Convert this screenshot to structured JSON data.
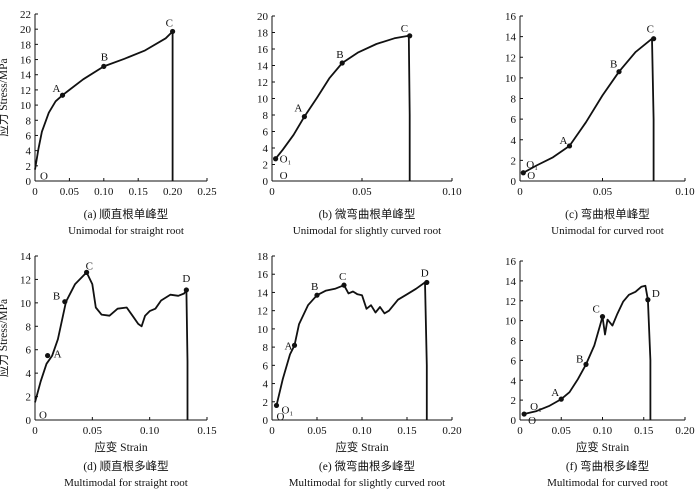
{
  "figure": {
    "y_axis_label": "应力 Stress/MPa",
    "x_axis_label": "应变 Strain"
  },
  "chart_data": [
    {
      "id": "a",
      "type": "line",
      "caption_cn": "(a) 顺直根单峰型",
      "caption_en": "Unimodal for straight root",
      "xlim": [
        0,
        0.25
      ],
      "ylim": [
        0,
        22
      ],
      "xticks": [
        "0",
        "0.05",
        "0.10",
        "0.15",
        "0.20",
        "0.25"
      ],
      "yticks": [
        "0",
        "2",
        "4",
        "6",
        "8",
        "10",
        "12",
        "14",
        "16",
        "18",
        "20",
        "22"
      ],
      "xtick_values": [
        0,
        0.05,
        0.1,
        0.15,
        0.2,
        0.25
      ],
      "ytick_values": [
        0,
        2,
        4,
        6,
        8,
        10,
        12,
        14,
        16,
        18,
        20,
        22
      ],
      "ylabel": "应力 Stress/MPa",
      "xlabel": "",
      "series": [
        {
          "x": [
            0,
            0.005,
            0.01,
            0.02,
            0.03,
            0.04,
            0.05,
            0.07,
            0.1,
            0.13,
            0.16,
            0.19,
            0.2,
            0.2,
            0.2
          ],
          "y": [
            1.5,
            4.2,
            6.5,
            9.0,
            10.5,
            11.3,
            12.0,
            13.4,
            15.1,
            16.1,
            17.2,
            18.8,
            19.7,
            8.0,
            0
          ]
        }
      ],
      "points": [
        {
          "label": "O",
          "x": 0,
          "y": 1.5,
          "dx": 5,
          "dy": 10
        },
        {
          "label": "A",
          "x": 0.04,
          "y": 11.3,
          "dx": -10,
          "dy": -3
        },
        {
          "label": "B",
          "x": 0.1,
          "y": 15.1,
          "dx": -3,
          "dy": -6
        },
        {
          "label": "C",
          "x": 0.2,
          "y": 19.7,
          "dx": -7,
          "dy": -5
        }
      ]
    },
    {
      "id": "b",
      "type": "line",
      "caption_cn": "(b) 微弯曲根单峰型",
      "caption_en": "Unimodal for slightly curved root",
      "xlim": [
        0,
        0.1
      ],
      "ylim": [
        0,
        20
      ],
      "xticks": [
        "0",
        "0.05",
        "0.10"
      ],
      "yticks": [
        "0",
        "2",
        "4",
        "6",
        "8",
        "10",
        "12",
        "14",
        "16",
        "18",
        "20"
      ],
      "xtick_values": [
        0,
        0.05,
        0.1
      ],
      "ytick_values": [
        0,
        2,
        4,
        6,
        8,
        10,
        12,
        14,
        16,
        18,
        20
      ],
      "xlabel": "",
      "ylabel": "",
      "series": [
        {
          "x": [
            0.002,
            0.006,
            0.012,
            0.018,
            0.025,
            0.032,
            0.039,
            0.048,
            0.058,
            0.068,
            0.076,
            0.0765,
            0.0765
          ],
          "y": [
            2.7,
            3.8,
            5.6,
            7.8,
            10.1,
            12.5,
            14.3,
            15.6,
            16.6,
            17.3,
            17.6,
            8.0,
            0
          ]
        }
      ],
      "points": [
        {
          "label": "O₁",
          "x": 0.002,
          "y": 2.7,
          "dx": 4,
          "dy": 4
        },
        {
          "label": "O",
          "x": 0.002,
          "y": 0,
          "dx": 4,
          "dy": -2
        },
        {
          "label": "A",
          "x": 0.018,
          "y": 7.8,
          "dx": -10,
          "dy": -5
        },
        {
          "label": "B",
          "x": 0.039,
          "y": 14.3,
          "dx": -6,
          "dy": -5
        },
        {
          "label": "C",
          "x": 0.0765,
          "y": 17.6,
          "dx": -9,
          "dy": -4
        }
      ]
    },
    {
      "id": "c",
      "type": "line",
      "caption_cn": "(c) 弯曲根单峰型",
      "caption_en": "Unimodal for curved root",
      "xlim": [
        0,
        0.1
      ],
      "ylim": [
        0,
        16
      ],
      "xticks": [
        "0",
        "0.05",
        "0.10"
      ],
      "yticks": [
        "0",
        "2",
        "4",
        "6",
        "8",
        "10",
        "12",
        "14",
        "16"
      ],
      "xtick_values": [
        0,
        0.05,
        0.1
      ],
      "ytick_values": [
        0,
        2,
        4,
        6,
        8,
        10,
        12,
        14,
        16
      ],
      "xlabel": "",
      "ylabel": "",
      "series": [
        {
          "x": [
            0.002,
            0.01,
            0.02,
            0.03,
            0.04,
            0.05,
            0.06,
            0.07,
            0.08,
            0.081,
            0.081
          ],
          "y": [
            0.8,
            1.5,
            2.3,
            3.4,
            5.7,
            8.3,
            10.6,
            12.5,
            13.8,
            6.0,
            0
          ]
        }
      ],
      "points": [
        {
          "label": "O₁",
          "x": 0.002,
          "y": 0.8,
          "dx": 3,
          "dy": -5
        },
        {
          "label": "O",
          "x": 0.002,
          "y": 0,
          "dx": 4,
          "dy": -2
        },
        {
          "label": "A",
          "x": 0.03,
          "y": 3.4,
          "dx": -10,
          "dy": -2
        },
        {
          "label": "B",
          "x": 0.06,
          "y": 10.6,
          "dx": -9,
          "dy": -4
        },
        {
          "label": "C",
          "x": 0.081,
          "y": 13.8,
          "dx": -7,
          "dy": -6
        }
      ]
    },
    {
      "id": "d",
      "type": "line",
      "caption_cn": "(d) 顺直根多峰型",
      "caption_en": "Multimodal for straight root",
      "xlim": [
        0,
        0.15
      ],
      "ylim": [
        0,
        14
      ],
      "xticks": [
        "0",
        "0.05",
        "0.10",
        "0.15"
      ],
      "yticks": [
        "0",
        "2",
        "4",
        "6",
        "8",
        "10",
        "12",
        "14"
      ],
      "xtick_values": [
        0,
        0.05,
        0.1,
        0.15
      ],
      "ytick_values": [
        0,
        2,
        4,
        6,
        8,
        10,
        12,
        14
      ],
      "ylabel": "应力 Stress/MPa",
      "xlabel": "应变 Strain",
      "series": [
        {
          "x": [
            0,
            0.005,
            0.01,
            0.015,
            0.02,
            0.027,
            0.035,
            0.045,
            0.05,
            0.053,
            0.058,
            0.065,
            0.072,
            0.08,
            0.085,
            0.09,
            0.093,
            0.096,
            0.1,
            0.105,
            0.11,
            0.118,
            0.125,
            0.13,
            0.132,
            0.133,
            0.133
          ],
          "y": [
            1.5,
            3.3,
            4.8,
            5.5,
            6.9,
            10.1,
            11.6,
            12.6,
            11.6,
            9.6,
            9.0,
            8.9,
            9.5,
            9.6,
            8.9,
            8.2,
            8.0,
            8.9,
            9.3,
            9.5,
            10.2,
            10.7,
            10.6,
            10.8,
            11.1,
            5.0,
            0
          ]
        }
      ],
      "points": [
        {
          "label": "O",
          "x": 0,
          "y": 1.5,
          "dx": 4,
          "dy": 16
        },
        {
          "label": "A",
          "x": 0.011,
          "y": 5.5,
          "dx": 6,
          "dy": 2
        },
        {
          "label": "B",
          "x": 0.026,
          "y": 10.1,
          "dx": -12,
          "dy": -2
        },
        {
          "label": "C",
          "x": 0.045,
          "y": 12.6,
          "dx": -1,
          "dy": -3
        },
        {
          "label": "D",
          "x": 0.132,
          "y": 11.1,
          "dx": -4,
          "dy": -8
        }
      ]
    },
    {
      "id": "e",
      "type": "line",
      "caption_cn": "(e) 微弯曲根多峰型",
      "caption_en": "Multimodal for slightly curved root",
      "xlim": [
        0,
        0.2
      ],
      "ylim": [
        0,
        18
      ],
      "xticks": [
        "0",
        "0.05",
        "0.10",
        "0.15",
        "0.20"
      ],
      "yticks": [
        "0",
        "2",
        "4",
        "6",
        "8",
        "10",
        "12",
        "14",
        "16",
        "18"
      ],
      "xtick_values": [
        0,
        0.05,
        0.1,
        0.15,
        0.2
      ],
      "ytick_values": [
        0,
        2,
        4,
        6,
        8,
        10,
        12,
        14,
        16,
        18
      ],
      "xlabel": "应变 Strain",
      "ylabel": "",
      "series": [
        {
          "x": [
            0.005,
            0.012,
            0.02,
            0.025,
            0.03,
            0.04,
            0.05,
            0.06,
            0.07,
            0.08,
            0.085,
            0.09,
            0.095,
            0.1,
            0.105,
            0.11,
            0.115,
            0.12,
            0.125,
            0.13,
            0.14,
            0.15,
            0.16,
            0.17,
            0.172,
            0.172
          ],
          "y": [
            1.6,
            4.5,
            7.2,
            8.2,
            10.5,
            12.6,
            13.7,
            14.2,
            14.4,
            14.8,
            13.9,
            14.1,
            13.8,
            13.7,
            12.2,
            12.6,
            11.8,
            12.4,
            11.7,
            12.0,
            13.2,
            13.8,
            14.4,
            15.1,
            6.0,
            0
          ]
        }
      ],
      "points": [
        {
          "label": "O₁",
          "x": 0.005,
          "y": 1.6,
          "dx": 5,
          "dy": 8
        },
        {
          "label": "O",
          "x": 0.005,
          "y": 0,
          "dx": 0,
          "dy": 0
        },
        {
          "label": "A",
          "x": 0.025,
          "y": 8.2,
          "dx": -10,
          "dy": 4
        },
        {
          "label": "B",
          "x": 0.05,
          "y": 13.7,
          "dx": -6,
          "dy": -5
        },
        {
          "label": "C",
          "x": 0.08,
          "y": 14.8,
          "dx": -5,
          "dy": -5
        },
        {
          "label": "D",
          "x": 0.172,
          "y": 15.1,
          "dx": -6,
          "dy": -6
        }
      ]
    },
    {
      "id": "f",
      "type": "line",
      "caption_cn": "(f) 弯曲根多峰型",
      "caption_en": "Multimodal for curved root",
      "xlim": [
        0,
        0.2
      ],
      "ylim": [
        0,
        16
      ],
      "xticks": [
        "0",
        "0.05",
        "0.10",
        "0.15",
        "0.20"
      ],
      "yticks": [
        "0",
        "2",
        "4",
        "6",
        "8",
        "10",
        "12",
        "14",
        "16"
      ],
      "xtick_values": [
        0,
        0.05,
        0.1,
        0.15,
        0.2
      ],
      "ytick_values": [
        0,
        2,
        4,
        6,
        8,
        10,
        12,
        14,
        16
      ],
      "xlabel": "应变 Strain",
      "ylabel": "",
      "series": [
        {
          "x": [
            0.005,
            0.02,
            0.035,
            0.05,
            0.06,
            0.07,
            0.08,
            0.09,
            0.097,
            0.1,
            0.103,
            0.106,
            0.112,
            0.118,
            0.125,
            0.132,
            0.14,
            0.147,
            0.152,
            0.155,
            0.158,
            0.158
          ],
          "y": [
            0.6,
            0.9,
            1.4,
            2.1,
            2.8,
            4.1,
            5.6,
            7.5,
            9.5,
            10.4,
            8.6,
            10.1,
            9.5,
            10.7,
            11.9,
            12.6,
            12.9,
            13.4,
            13.5,
            12.1,
            6.0,
            0
          ]
        }
      ],
      "points": [
        {
          "label": "O₁",
          "x": 0.005,
          "y": 0.6,
          "dx": 6,
          "dy": -4
        },
        {
          "label": "O",
          "x": 0.005,
          "y": 0,
          "dx": 4,
          "dy": 4
        },
        {
          "label": "A",
          "x": 0.05,
          "y": 2.1,
          "dx": -10,
          "dy": -3
        },
        {
          "label": "B",
          "x": 0.08,
          "y": 5.6,
          "dx": -10,
          "dy": -2
        },
        {
          "label": "C",
          "x": 0.1,
          "y": 10.4,
          "dx": -10,
          "dy": -4
        },
        {
          "label": "D",
          "x": 0.155,
          "y": 12.1,
          "dx": 4,
          "dy": -3
        }
      ]
    }
  ]
}
